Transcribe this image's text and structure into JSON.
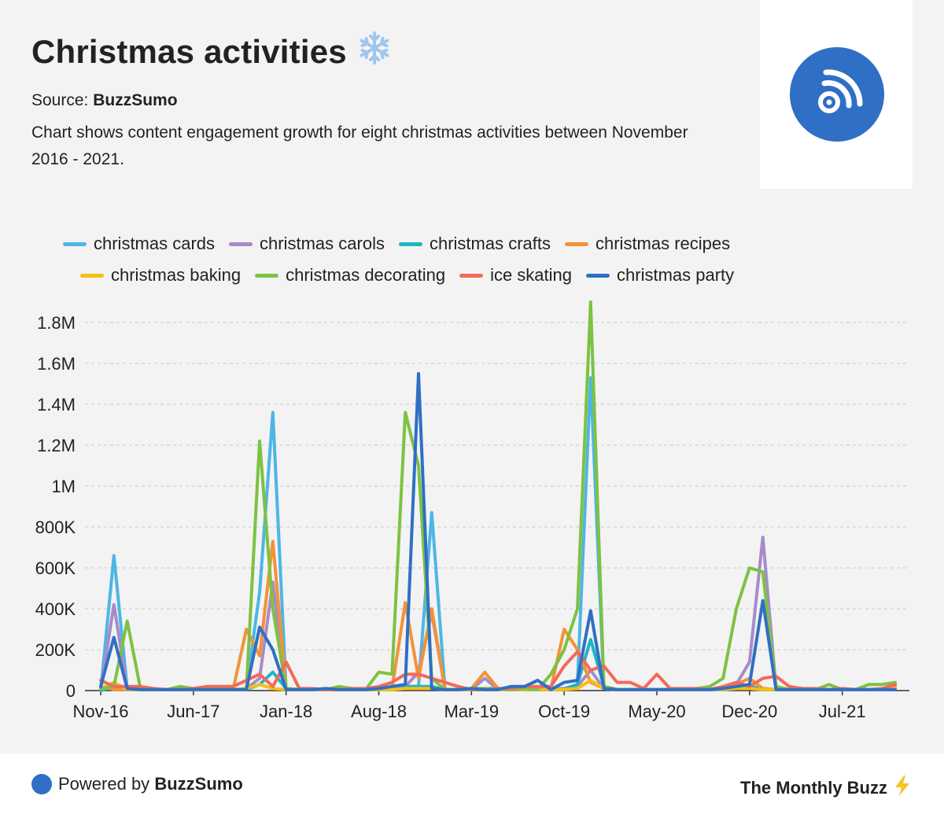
{
  "header": {
    "title": "Christmas activities",
    "source_label": "Source:",
    "source_name": "BuzzSumo",
    "description": "Chart shows content engagement growth for eight christmas activities between November 2016 - 2021."
  },
  "icons": {
    "title_icon": "snowflake-icon",
    "logo_icon": "buzzsumo-signal-icon",
    "footer_icon": "lightning-icon"
  },
  "colors": {
    "logo_blue": "#2f6fc5",
    "bolt": "#f6c324",
    "snow": "#9ec7ee"
  },
  "footer": {
    "powered_label": "Powered by",
    "powered_name": "BuzzSumo",
    "brand": "The Monthly Buzz"
  },
  "chart_data": {
    "type": "line",
    "title": "",
    "xlabel": "",
    "ylabel": "",
    "x_tick_labels": [
      "Nov-16",
      "Jun-17",
      "Jan-18",
      "Aug-18",
      "Mar-19",
      "Oct-19",
      "May-20",
      "Dec-20",
      "Jul-21"
    ],
    "y_tick_labels": [
      "0",
      "200K",
      "400K",
      "600K",
      "800K",
      "1M",
      "1.2M",
      "1.4M",
      "1.6M",
      "1.8M"
    ],
    "ylim": [
      0,
      1800000
    ],
    "grid": true,
    "legend_position": "top",
    "x": [
      "Nov-16",
      "Dec-16",
      "Jan-17",
      "Feb-17",
      "Mar-17",
      "Apr-17",
      "May-17",
      "Jun-17",
      "Jul-17",
      "Aug-17",
      "Sep-17",
      "Oct-17",
      "Nov-17",
      "Dec-17",
      "Jan-18",
      "Feb-18",
      "Mar-18",
      "Apr-18",
      "May-18",
      "Jun-18",
      "Jul-18",
      "Aug-18",
      "Sep-18",
      "Oct-18",
      "Nov-18",
      "Dec-18",
      "Jan-19",
      "Feb-19",
      "Mar-19",
      "Apr-19",
      "May-19",
      "Jun-19",
      "Jul-19",
      "Aug-19",
      "Sep-19",
      "Oct-19",
      "Nov-19",
      "Dec-19",
      "Jan-20",
      "Feb-20",
      "Mar-20",
      "Apr-20",
      "May-20",
      "Jun-20",
      "Jul-20",
      "Aug-20",
      "Sep-20",
      "Oct-20",
      "Nov-20",
      "Dec-20",
      "Jan-21",
      "Feb-21",
      "Mar-21",
      "Apr-21",
      "May-21",
      "Jun-21",
      "Jul-21",
      "Aug-21",
      "Sep-21",
      "Oct-21",
      "Nov-21"
    ],
    "series": [
      {
        "name": "christmas cards",
        "color": "#4db6e5",
        "values": [
          0,
          660000,
          10000,
          5000,
          5000,
          5000,
          5000,
          5000,
          5000,
          5000,
          5000,
          10000,
          480000,
          1360000,
          5000,
          5000,
          5000,
          5000,
          5000,
          5000,
          5000,
          5000,
          10000,
          20000,
          20000,
          870000,
          5000,
          5000,
          5000,
          5000,
          5000,
          5000,
          5000,
          5000,
          10000,
          10000,
          30000,
          1530000,
          10000,
          5000,
          5000,
          5000,
          5000,
          5000,
          5000,
          5000,
          5000,
          10000,
          20000,
          10000,
          5000,
          5000,
          5000,
          5000,
          5000,
          5000,
          5000,
          5000,
          5000,
          5000,
          10000
        ]
      },
      {
        "name": "christmas carols",
        "color": "#a78bc9",
        "values": [
          5000,
          420000,
          10000,
          5000,
          5000,
          5000,
          5000,
          5000,
          5000,
          5000,
          5000,
          10000,
          60000,
          530000,
          10000,
          5000,
          5000,
          5000,
          5000,
          5000,
          5000,
          5000,
          5000,
          20000,
          90000,
          380000,
          5000,
          5000,
          5000,
          60000,
          5000,
          5000,
          10000,
          5000,
          5000,
          10000,
          20000,
          100000,
          10000,
          5000,
          5000,
          5000,
          5000,
          5000,
          5000,
          5000,
          5000,
          10000,
          30000,
          140000,
          750000,
          10000,
          5000,
          5000,
          5000,
          5000,
          5000,
          5000,
          5000,
          5000,
          20000
        ]
      },
      {
        "name": "christmas crafts",
        "color": "#1eb5c4",
        "values": [
          0,
          20000,
          10000,
          5000,
          5000,
          5000,
          5000,
          5000,
          5000,
          5000,
          5000,
          5000,
          30000,
          90000,
          10000,
          5000,
          5000,
          5000,
          5000,
          5000,
          5000,
          5000,
          10000,
          20000,
          20000,
          20000,
          5000,
          5000,
          5000,
          5000,
          5000,
          5000,
          5000,
          5000,
          5000,
          5000,
          30000,
          250000,
          20000,
          5000,
          5000,
          5000,
          5000,
          5000,
          5000,
          5000,
          5000,
          5000,
          10000,
          20000,
          10000,
          5000,
          5000,
          5000,
          5000,
          5000,
          5000,
          5000,
          5000,
          5000,
          10000
        ]
      },
      {
        "name": "christmas recipes",
        "color": "#f39237",
        "values": [
          20000,
          5000,
          5000,
          5000,
          5000,
          5000,
          5000,
          5000,
          5000,
          5000,
          5000,
          300000,
          170000,
          730000,
          10000,
          5000,
          5000,
          5000,
          5000,
          5000,
          5000,
          5000,
          10000,
          430000,
          60000,
          400000,
          5000,
          5000,
          10000,
          90000,
          10000,
          5000,
          5000,
          10000,
          10000,
          300000,
          200000,
          40000,
          10000,
          5000,
          5000,
          5000,
          5000,
          5000,
          5000,
          5000,
          5000,
          10000,
          30000,
          60000,
          10000,
          5000,
          5000,
          5000,
          5000,
          5000,
          5000,
          5000,
          5000,
          5000,
          20000
        ]
      },
      {
        "name": "christmas baking",
        "color": "#f5c013",
        "values": [
          10000,
          40000,
          5000,
          5000,
          5000,
          5000,
          5000,
          5000,
          5000,
          5000,
          5000,
          10000,
          30000,
          10000,
          5000,
          5000,
          5000,
          5000,
          5000,
          5000,
          5000,
          5000,
          5000,
          10000,
          10000,
          10000,
          5000,
          5000,
          5000,
          5000,
          5000,
          5000,
          5000,
          5000,
          5000,
          5000,
          10000,
          50000,
          10000,
          5000,
          5000,
          5000,
          5000,
          5000,
          5000,
          5000,
          5000,
          5000,
          10000,
          10000,
          5000,
          5000,
          5000,
          5000,
          5000,
          5000,
          5000,
          5000,
          5000,
          5000,
          10000
        ]
      },
      {
        "name": "christmas decorating",
        "color": "#7dc242",
        "values": [
          10000,
          20000,
          340000,
          10000,
          5000,
          5000,
          20000,
          10000,
          5000,
          5000,
          5000,
          5000,
          1220000,
          400000,
          10000,
          5000,
          5000,
          5000,
          20000,
          10000,
          5000,
          90000,
          80000,
          1360000,
          1100000,
          60000,
          5000,
          5000,
          10000,
          10000,
          10000,
          5000,
          10000,
          5000,
          80000,
          200000,
          400000,
          1900000,
          20000,
          5000,
          5000,
          5000,
          5000,
          5000,
          5000,
          10000,
          20000,
          60000,
          400000,
          600000,
          580000,
          20000,
          5000,
          5000,
          5000,
          30000,
          5000,
          5000,
          30000,
          30000,
          40000
        ]
      },
      {
        "name": "ice skating",
        "color": "#f26a5a",
        "values": [
          50000,
          20000,
          20000,
          20000,
          10000,
          5000,
          5000,
          10000,
          20000,
          20000,
          20000,
          50000,
          80000,
          20000,
          140000,
          10000,
          10000,
          5000,
          5000,
          10000,
          10000,
          20000,
          40000,
          80000,
          80000,
          60000,
          40000,
          20000,
          5000,
          5000,
          10000,
          10000,
          20000,
          20000,
          20000,
          120000,
          190000,
          100000,
          120000,
          40000,
          40000,
          10000,
          80000,
          10000,
          10000,
          10000,
          5000,
          20000,
          40000,
          20000,
          60000,
          70000,
          20000,
          10000,
          10000,
          5000,
          10000,
          5000,
          5000,
          10000,
          30000
        ]
      },
      {
        "name": "christmas party",
        "color": "#2f6fc5",
        "values": [
          20000,
          260000,
          10000,
          5000,
          5000,
          5000,
          5000,
          5000,
          5000,
          5000,
          5000,
          5000,
          310000,
          200000,
          5000,
          5000,
          5000,
          10000,
          5000,
          5000,
          5000,
          10000,
          20000,
          30000,
          1550000,
          10000,
          5000,
          5000,
          10000,
          5000,
          5000,
          20000,
          20000,
          50000,
          5000,
          40000,
          50000,
          390000,
          10000,
          5000,
          5000,
          5000,
          5000,
          5000,
          5000,
          5000,
          5000,
          10000,
          20000,
          30000,
          440000,
          5000,
          5000,
          5000,
          5000,
          5000,
          5000,
          5000,
          5000,
          5000,
          5000
        ]
      }
    ]
  }
}
